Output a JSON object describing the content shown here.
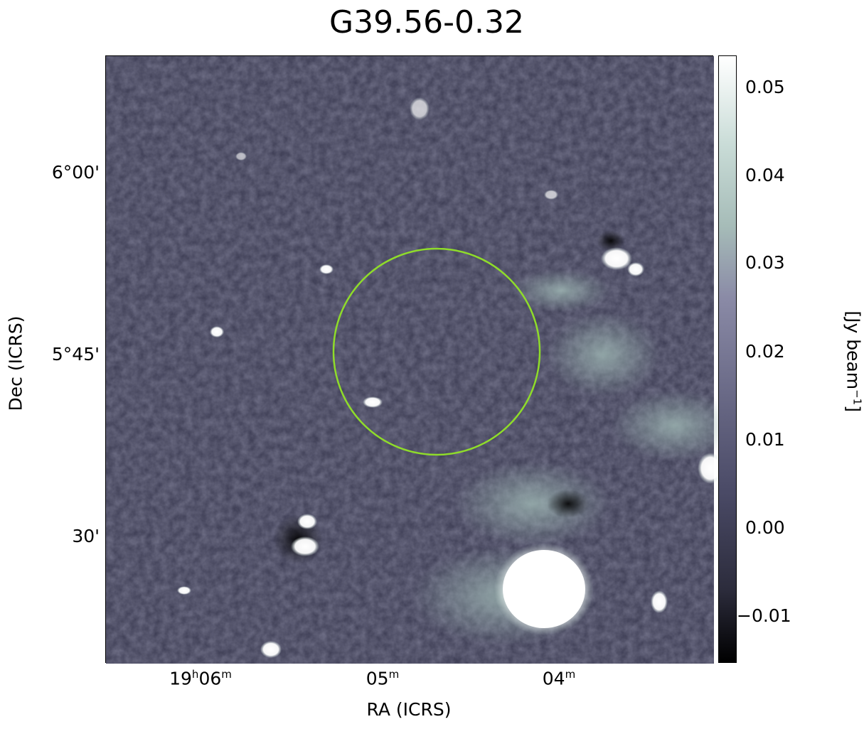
{
  "title": "G39.56-0.32",
  "axes": {
    "xlabel": "RA (ICRS)",
    "ylabel": "Dec (ICRS)",
    "yticks": [
      "6°00'",
      "5°45'",
      "30'"
    ],
    "xticks": [
      {
        "main": "19",
        "sup1": "h",
        "mid": "06",
        "sup2": "m"
      },
      {
        "main": "05",
        "sup1": "m"
      },
      {
        "main": "04",
        "sup1": "m"
      }
    ]
  },
  "colorbar": {
    "label": "[Jy beam",
    "label_sup": "−1",
    "label_end": "]",
    "ticks": [
      "0.05",
      "0.04",
      "0.03",
      "0.02",
      "0.01",
      "0.00",
      "−0.01"
    ],
    "colors": [
      "#000000",
      "#4a4a66",
      "#8a8aa6",
      "#bfd4d0",
      "#ffffff"
    ]
  },
  "overlay": {
    "circle_color": "#8fdc2a"
  }
}
